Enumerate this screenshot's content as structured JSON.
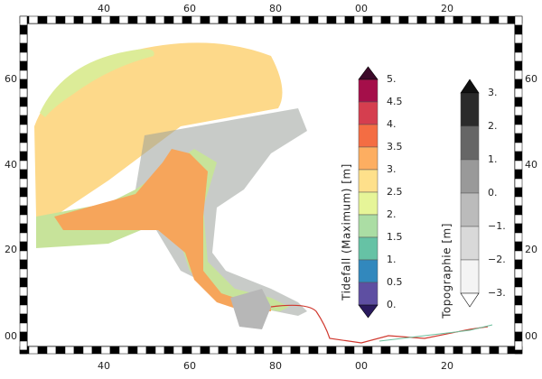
{
  "frame": {
    "top_labels": [
      "40",
      "60",
      "80",
      "00",
      "20"
    ],
    "bottom_labels": [
      "40",
      "60",
      "80",
      "00",
      "20"
    ],
    "left_labels": [
      "60",
      "40",
      "20",
      "00"
    ],
    "right_labels": [
      "60",
      "40",
      "20",
      "00"
    ]
  },
  "colorbars": [
    {
      "title": "Tidefall (Maximum) [m]",
      "labels": [
        "5.",
        "4.5",
        "4.",
        "3.5",
        "3.",
        "2.5",
        "2.",
        "1.5",
        "1.",
        "0.5",
        "0."
      ]
    },
    {
      "title": "Topographie [m]",
      "labels": [
        "3.",
        "2.",
        "1.",
        "0.",
        "−1.",
        "−2.",
        "−3."
      ]
    }
  ]
}
